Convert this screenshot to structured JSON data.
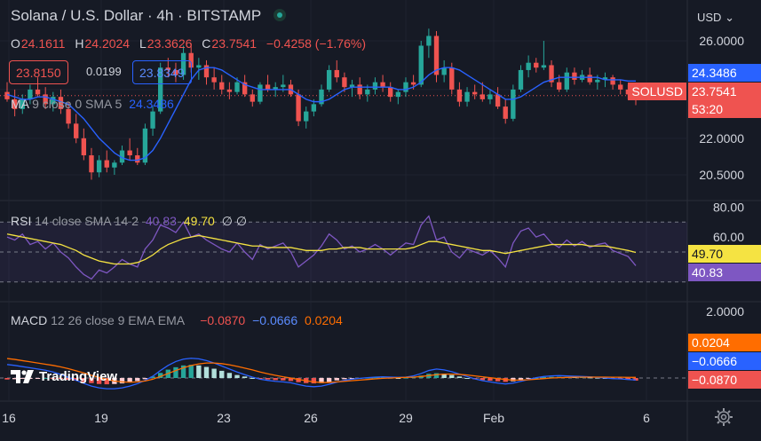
{
  "header": {
    "symbol_title": "Solana / U.S. Dollar · 4h · BITSTAMP",
    "ohlc": {
      "o_label": "O",
      "o": "24.1611",
      "h_label": "H",
      "h": "24.2024",
      "l_label": "L",
      "l": "23.3626",
      "c_label": "C",
      "c": "23.7541",
      "change": "−0.4258 (−1.76%)"
    },
    "sell_price": "23.8150",
    "spread": "0.0199",
    "buy_price": "23.8349",
    "currency": "USD"
  },
  "indicators": {
    "ma": {
      "name": "MA",
      "params": "9 close 0 SMA 5",
      "value": "24.3486"
    },
    "rsi": {
      "name": "RSI",
      "params": "14 close SMA 14 2",
      "value1": "40.83",
      "value2": "49.70",
      "extra": "∅ ∅"
    },
    "macd": {
      "name": "MACD",
      "params": "12 26 close 9 EMA EMA",
      "hist": "−0.0870",
      "macd": "−0.0666",
      "signal": "0.0204"
    }
  },
  "price_tags": {
    "ma": "24.3486",
    "symbol": "SOLUSD",
    "last": "23.7541",
    "countdown": "53:20",
    "rsi_ma": "49.70",
    "rsi": "40.83",
    "macd_signal": "0.0204",
    "macd": "−0.0666",
    "macd_hist": "−0.0870"
  },
  "branding": "TradingView",
  "colors": {
    "up": "#26a69a",
    "down": "#ef5350",
    "ma": "#2962ff",
    "rsi": "#7e57c2",
    "rsi_ma": "#f5e342",
    "macd_signal": "#ff6d00",
    "background": "#161a25"
  },
  "chart_data": [
    {
      "type": "candlestick",
      "title": "Solana / U.S. Dollar · 4h · BITSTAMP",
      "x_tick_labels": [
        "16",
        "19",
        "23",
        "26",
        "29",
        "Feb",
        "6"
      ],
      "y_tick_labels": [
        "26.0000",
        "24.3486",
        "23.7541",
        "22.0000",
        "20.5000"
      ],
      "ylim": [
        19.9,
        26.9
      ],
      "grid": true,
      "candles": [
        [
          23.9,
          24.3,
          23.5,
          23.6
        ],
        [
          23.6,
          24.0,
          22.9,
          23.2
        ],
        [
          23.2,
          23.8,
          23.0,
          23.6
        ],
        [
          23.6,
          24.2,
          23.4,
          24.0
        ],
        [
          24.0,
          24.5,
          23.7,
          23.8
        ],
        [
          23.8,
          24.1,
          23.2,
          23.4
        ],
        [
          23.4,
          23.9,
          23.1,
          23.7
        ],
        [
          23.7,
          24.0,
          23.0,
          23.2
        ],
        [
          23.2,
          23.5,
          22.4,
          22.6
        ],
        [
          22.6,
          23.0,
          21.8,
          22.0
        ],
        [
          22.0,
          22.4,
          21.1,
          21.3
        ],
        [
          21.3,
          21.6,
          20.3,
          20.6
        ],
        [
          20.6,
          21.3,
          20.4,
          21.1
        ],
        [
          21.1,
          21.5,
          20.6,
          20.8
        ],
        [
          20.8,
          21.1,
          20.5,
          21.0
        ],
        [
          21.0,
          21.7,
          20.9,
          21.5
        ],
        [
          21.5,
          22.0,
          21.1,
          21.3
        ],
        [
          21.3,
          21.6,
          20.9,
          21.0
        ],
        [
          21.0,
          22.6,
          20.9,
          22.4
        ],
        [
          22.4,
          23.3,
          22.1,
          23.1
        ],
        [
          23.1,
          25.1,
          23.0,
          24.9
        ],
        [
          24.9,
          25.3,
          24.5,
          24.8
        ],
        [
          24.8,
          25.1,
          24.3,
          24.6
        ],
        [
          24.6,
          25.8,
          24.4,
          25.5
        ],
        [
          25.5,
          25.9,
          24.7,
          24.9
        ],
        [
          24.9,
          25.3,
          24.4,
          25.0
        ],
        [
          25.0,
          25.2,
          24.2,
          24.5
        ],
        [
          24.5,
          24.9,
          24.0,
          24.3
        ],
        [
          24.3,
          24.6,
          23.8,
          24.0
        ],
        [
          24.0,
          24.3,
          23.6,
          23.9
        ],
        [
          23.9,
          24.5,
          23.8,
          24.3
        ],
        [
          24.3,
          24.6,
          23.7,
          23.8
        ],
        [
          23.8,
          24.0,
          23.3,
          23.5
        ],
        [
          23.5,
          24.3,
          23.4,
          24.2
        ],
        [
          24.2,
          24.6,
          23.9,
          24.0
        ],
        [
          24.0,
          24.3,
          23.7,
          24.1
        ],
        [
          24.1,
          24.6,
          23.9,
          24.2
        ],
        [
          24.2,
          24.4,
          23.7,
          23.8
        ],
        [
          23.8,
          24.0,
          22.5,
          22.7
        ],
        [
          22.7,
          23.3,
          22.4,
          23.1
        ],
        [
          23.1,
          23.6,
          22.9,
          23.4
        ],
        [
          23.4,
          24.2,
          23.3,
          24.0
        ],
        [
          24.0,
          25.0,
          23.9,
          24.8
        ],
        [
          24.8,
          25.2,
          24.3,
          24.5
        ],
        [
          24.5,
          24.7,
          23.9,
          24.1
        ],
        [
          24.1,
          24.4,
          23.7,
          24.2
        ],
        [
          24.2,
          24.5,
          23.6,
          23.8
        ],
        [
          23.8,
          24.2,
          23.5,
          24.0
        ],
        [
          24.0,
          24.5,
          23.8,
          24.3
        ],
        [
          24.3,
          24.6,
          23.9,
          24.1
        ],
        [
          24.1,
          24.3,
          23.5,
          23.7
        ],
        [
          23.7,
          24.0,
          23.4,
          23.9
        ],
        [
          23.9,
          24.5,
          23.7,
          24.3
        ],
        [
          24.3,
          24.6,
          24.0,
          24.2
        ],
        [
          24.2,
          26.0,
          24.1,
          25.8
        ],
        [
          25.8,
          26.5,
          25.3,
          26.2
        ],
        [
          26.2,
          26.4,
          24.3,
          24.6
        ],
        [
          24.6,
          25.2,
          24.3,
          24.9
        ],
        [
          24.9,
          25.1,
          23.8,
          24.0
        ],
        [
          24.0,
          24.3,
          23.3,
          23.5
        ],
        [
          23.5,
          24.1,
          23.3,
          23.9
        ],
        [
          23.9,
          24.2,
          23.6,
          23.8
        ],
        [
          23.8,
          24.3,
          23.5,
          23.6
        ],
        [
          23.6,
          24.0,
          23.4,
          23.8
        ],
        [
          23.8,
          24.1,
          23.2,
          23.3
        ],
        [
          23.3,
          23.6,
          22.6,
          22.8
        ],
        [
          22.8,
          24.2,
          22.7,
          24.0
        ],
        [
          24.0,
          25.0,
          23.9,
          24.8
        ],
        [
          24.8,
          25.4,
          24.5,
          25.1
        ],
        [
          25.1,
          25.3,
          24.7,
          24.9
        ],
        [
          24.9,
          26.0,
          24.8,
          25.0
        ],
        [
          25.0,
          25.2,
          24.1,
          24.3
        ],
        [
          24.3,
          24.6,
          23.9,
          24.0
        ],
        [
          24.0,
          24.9,
          23.9,
          24.7
        ],
        [
          24.7,
          24.9,
          24.2,
          24.4
        ],
        [
          24.4,
          24.8,
          24.3,
          24.6
        ],
        [
          24.6,
          24.9,
          24.2,
          24.3
        ],
        [
          24.3,
          24.6,
          24.0,
          24.4
        ],
        [
          24.4,
          24.7,
          24.1,
          24.5
        ],
        [
          24.5,
          24.6,
          24.0,
          24.2
        ],
        [
          24.2,
          24.4,
          23.8,
          24.0
        ],
        [
          24.0,
          24.2,
          23.6,
          23.8
        ],
        [
          24.16,
          24.2,
          23.36,
          23.75
        ]
      ],
      "series": [
        {
          "name": "MA 9 close 0 SMA 5",
          "values": [
            23.8,
            23.7,
            23.6,
            23.6,
            23.7,
            23.7,
            23.6,
            23.5,
            23.4,
            23.1,
            22.8,
            22.4,
            22.0,
            21.7,
            21.4,
            21.2,
            21.1,
            21.1,
            21.2,
            21.5,
            22.0,
            22.6,
            23.2,
            23.8,
            24.4,
            24.8,
            24.9,
            24.9,
            24.8,
            24.6,
            24.4,
            24.2,
            24.1,
            24.0,
            24.0,
            24.0,
            24.0,
            24.0,
            23.8,
            23.6,
            23.5,
            23.5,
            23.6,
            23.8,
            24.0,
            24.1,
            24.1,
            24.1,
            24.1,
            24.1,
            24.1,
            24.0,
            24.0,
            24.1,
            24.3,
            24.6,
            24.8,
            24.9,
            24.9,
            24.8,
            24.6,
            24.4,
            24.2,
            24.0,
            23.8,
            23.6,
            23.6,
            23.7,
            23.9,
            24.1,
            24.3,
            24.4,
            24.5,
            24.5,
            24.5,
            24.5,
            24.5,
            24.5,
            24.4,
            24.4,
            24.4,
            24.35,
            24.35
          ]
        }
      ]
    },
    {
      "type": "line",
      "title": "RSI 14 close SMA 14 2",
      "y_tick_labels": [
        "80.00",
        "60.00"
      ],
      "ylim": [
        20,
        80
      ],
      "band": [
        30,
        70
      ],
      "series": [
        {
          "name": "RSI",
          "values": [
            60,
            58,
            62,
            55,
            57,
            52,
            56,
            50,
            46,
            40,
            35,
            32,
            38,
            36,
            40,
            45,
            42,
            40,
            52,
            58,
            68,
            66,
            63,
            70,
            60,
            62,
            58,
            55,
            52,
            50,
            56,
            50,
            45,
            55,
            52,
            54,
            56,
            50,
            40,
            44,
            48,
            54,
            62,
            58,
            52,
            54,
            50,
            52,
            55,
            52,
            48,
            52,
            56,
            55,
            68,
            74,
            58,
            60,
            50,
            46,
            52,
            50,
            48,
            51,
            46,
            40,
            56,
            64,
            66,
            60,
            62,
            56,
            53,
            58,
            54,
            57,
            53,
            55,
            56,
            51,
            49,
            47,
            40.83
          ]
        },
        {
          "name": "RSI-based MA",
          "values": [
            62,
            61,
            60,
            59,
            58,
            57,
            56,
            55,
            53,
            51,
            48,
            46,
            44,
            43,
            42,
            42,
            42,
            43,
            45,
            48,
            52,
            55,
            57,
            59,
            60,
            61,
            60,
            59,
            58,
            57,
            56,
            55,
            54,
            54,
            53,
            53,
            53,
            53,
            52,
            51,
            51,
            51,
            52,
            52,
            53,
            53,
            53,
            52,
            52,
            52,
            52,
            52,
            52,
            53,
            55,
            57,
            57,
            56,
            55,
            54,
            53,
            52,
            51,
            51,
            50,
            49,
            50,
            51,
            52,
            53,
            54,
            55,
            55,
            55,
            55,
            55,
            54,
            54,
            54,
            53,
            52,
            51,
            49.7
          ]
        }
      ]
    },
    {
      "type": "bar",
      "title": "MACD 12 26 close 9 EMA EMA",
      "y_tick_labels": [
        "2.0000"
      ],
      "ylim": [
        -0.6,
        2.0
      ],
      "series": [
        {
          "name": "Histogram",
          "values": [
            -0.05,
            -0.04,
            -0.03,
            -0.02,
            -0.01,
            0.0,
            -0.01,
            -0.03,
            -0.06,
            -0.09,
            -0.13,
            -0.17,
            -0.2,
            -0.21,
            -0.2,
            -0.18,
            -0.14,
            -0.1,
            -0.04,
            0.05,
            0.17,
            0.28,
            0.36,
            0.42,
            0.44,
            0.42,
            0.37,
            0.31,
            0.24,
            0.17,
            0.1,
            0.05,
            0.0,
            -0.03,
            -0.05,
            -0.07,
            -0.08,
            -0.1,
            -0.14,
            -0.17,
            -0.18,
            -0.17,
            -0.13,
            -0.08,
            -0.04,
            -0.02,
            0.0,
            0.01,
            0.02,
            0.02,
            0.01,
            0.0,
            0.01,
            0.03,
            0.08,
            0.14,
            0.16,
            0.14,
            0.1,
            0.05,
            0.0,
            -0.04,
            -0.07,
            -0.09,
            -0.11,
            -0.13,
            -0.11,
            -0.07,
            -0.03,
            0.0,
            0.03,
            0.04,
            0.04,
            0.04,
            0.03,
            0.03,
            0.02,
            0.01,
            0.0,
            -0.01,
            -0.03,
            -0.06,
            -0.087
          ]
        },
        {
          "name": "MACD",
          "values": [
            0.45,
            0.42,
            0.38,
            0.34,
            0.3,
            0.26,
            0.2,
            0.12,
            0.02,
            -0.08,
            -0.18,
            -0.27,
            -0.33,
            -0.36,
            -0.36,
            -0.33,
            -0.27,
            -0.19,
            -0.08,
            0.06,
            0.25,
            0.42,
            0.55,
            0.63,
            0.66,
            0.64,
            0.58,
            0.5,
            0.4,
            0.3,
            0.2,
            0.11,
            0.03,
            -0.04,
            -0.08,
            -0.11,
            -0.13,
            -0.16,
            -0.22,
            -0.27,
            -0.29,
            -0.27,
            -0.21,
            -0.14,
            -0.08,
            -0.04,
            -0.01,
            0.01,
            0.03,
            0.04,
            0.03,
            0.02,
            0.03,
            0.07,
            0.15,
            0.25,
            0.3,
            0.27,
            0.21,
            0.13,
            0.05,
            -0.03,
            -0.09,
            -0.13,
            -0.17,
            -0.2,
            -0.17,
            -0.11,
            -0.05,
            0.01,
            0.05,
            0.07,
            0.08,
            0.07,
            0.06,
            0.05,
            0.04,
            0.02,
            0.0,
            -0.02,
            -0.03,
            -0.05,
            -0.0666
          ]
        },
        {
          "name": "Signal",
          "values": [
            0.65,
            0.62,
            0.58,
            0.54,
            0.5,
            0.46,
            0.42,
            0.37,
            0.31,
            0.24,
            0.17,
            0.09,
            0.02,
            -0.05,
            -0.1,
            -0.13,
            -0.14,
            -0.13,
            -0.1,
            -0.04,
            0.05,
            0.15,
            0.25,
            0.34,
            0.42,
            0.47,
            0.5,
            0.5,
            0.48,
            0.44,
            0.39,
            0.33,
            0.27,
            0.2,
            0.14,
            0.09,
            0.04,
            0.0,
            -0.05,
            -0.09,
            -0.13,
            -0.15,
            -0.15,
            -0.13,
            -0.11,
            -0.09,
            -0.07,
            -0.05,
            -0.03,
            -0.01,
            0.0,
            0.01,
            0.02,
            0.03,
            0.05,
            0.08,
            0.11,
            0.13,
            0.13,
            0.12,
            0.1,
            0.07,
            0.04,
            0.01,
            -0.02,
            -0.05,
            -0.07,
            -0.07,
            -0.06,
            -0.04,
            -0.02,
            0.0,
            0.01,
            0.02,
            0.03,
            0.03,
            0.03,
            0.03,
            0.03,
            0.025,
            0.025,
            0.022,
            0.0204
          ]
        }
      ]
    }
  ]
}
